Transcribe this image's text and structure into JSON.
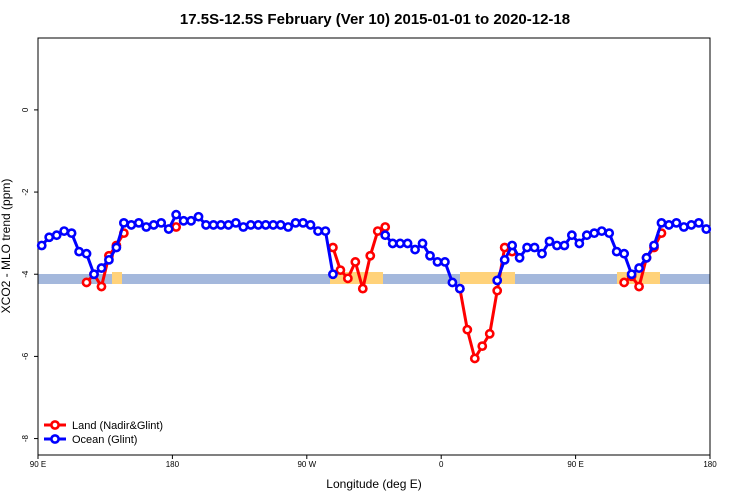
{
  "chart_data": {
    "type": "line",
    "title": "17.5S-12.5S February (Ver 10)   2015-01-01 to 2020-12-18",
    "xlabel": "Longitude (deg E)",
    "ylabel": "XCO2 - MLO trend (ppm)",
    "xlim": [
      90,
      540
    ],
    "ylim": [
      -8.4,
      1.75
    ],
    "xticks": [
      {
        "value": 90,
        "label": "90 E"
      },
      180,
      {
        "value": 270,
        "label": "90 W"
      },
      {
        "value": 360,
        "label": "0"
      },
      {
        "value": 450,
        "label": "90 E"
      },
      {
        "value": 540,
        "label": "180"
      }
    ],
    "yticks": [
      0,
      -2,
      -4,
      -6,
      -8
    ],
    "legend": "bottom-left",
    "x": [
      92.5,
      97.5,
      102.5,
      107.5,
      112.5,
      117.5,
      122.5,
      127.5,
      132.5,
      137.5,
      142.5,
      147.5,
      152.5,
      157.5,
      162.5,
      167.5,
      172.5,
      177.5,
      182.5,
      187.5,
      192.5,
      197.5,
      202.5,
      207.5,
      212.5,
      217.5,
      222.5,
      227.5,
      232.5,
      237.5,
      242.5,
      247.5,
      252.5,
      257.5,
      262.5,
      267.5,
      272.5,
      277.5,
      282.5,
      287.5,
      292.5,
      297.5,
      302.5,
      307.5,
      312.5,
      317.5,
      322.5,
      327.5,
      332.5,
      337.5,
      342.5,
      347.5,
      352.5,
      357.5,
      362.5,
      367.5,
      372.5,
      377.5,
      382.5,
      387.5,
      392.5,
      397.5,
      402.5,
      407.5,
      412.5,
      417.5,
      422.5,
      427.5,
      432.5,
      437.5,
      442.5,
      447.5,
      452.5,
      457.5,
      462.5,
      467.5,
      472.5,
      477.5,
      482.5,
      487.5,
      492.5,
      497.5,
      502.5,
      507.5,
      512.5,
      517.5,
      522.5,
      527.5,
      532.5,
      537.5
    ],
    "series": [
      {
        "name": "Land (Nadir&Glint)",
        "color": "#ff0000",
        "values": [
          null,
          null,
          null,
          null,
          null,
          null,
          -4.2,
          -4.0,
          -4.3,
          -3.55,
          -3.3,
          -3.0,
          null,
          null,
          null,
          null,
          null,
          null,
          -2.85,
          null,
          null,
          null,
          null,
          null,
          null,
          null,
          null,
          null,
          null,
          null,
          null,
          null,
          null,
          null,
          null,
          null,
          null,
          null,
          null,
          -3.35,
          -3.9,
          -4.1,
          -3.7,
          -4.35,
          -3.55,
          -2.95,
          -2.85,
          null,
          null,
          null,
          null,
          null,
          null,
          null,
          null,
          null,
          -4.35,
          -5.35,
          -6.05,
          -5.75,
          -5.45,
          -4.4,
          -3.35,
          -3.45,
          null,
          null,
          null,
          null,
          null,
          null,
          null,
          null,
          null,
          null,
          null,
          null,
          null,
          null,
          -4.2,
          -4.05,
          -4.3,
          -3.6,
          -3.35,
          -3.0,
          null,
          null,
          null,
          null,
          null,
          null
        ]
      },
      {
        "name": "Ocean (Glint)",
        "color": "#0000ff",
        "values": [
          -3.3,
          -3.1,
          -3.05,
          -2.95,
          -3.0,
          -3.45,
          -3.5,
          -4.0,
          -3.85,
          -3.65,
          -3.35,
          -2.75,
          -2.8,
          -2.75,
          -2.85,
          -2.8,
          -2.75,
          -2.9,
          -2.55,
          -2.7,
          -2.7,
          -2.6,
          -2.8,
          -2.8,
          -2.8,
          -2.8,
          -2.75,
          -2.85,
          -2.8,
          -2.8,
          -2.8,
          -2.8,
          -2.8,
          -2.85,
          -2.75,
          -2.75,
          -2.8,
          -2.95,
          -2.95,
          -4.0,
          null,
          null,
          null,
          null,
          null,
          null,
          -3.05,
          -3.25,
          -3.25,
          -3.25,
          -3.4,
          -3.25,
          -3.55,
          -3.7,
          -3.7,
          -4.2,
          -4.35,
          null,
          null,
          null,
          null,
          -4.15,
          -3.65,
          -3.3,
          -3.6,
          -3.35,
          -3.35,
          -3.5,
          -3.2,
          -3.3,
          -3.3,
          -3.05,
          -3.25,
          -3.05,
          -3.0,
          -2.95,
          -3.0,
          -3.45,
          -3.5,
          -4.0,
          -3.85,
          -3.6,
          -3.3,
          -2.75,
          -2.8,
          -2.75,
          -2.85,
          -2.8,
          -2.75,
          -2.9
        ]
      }
    ]
  }
}
